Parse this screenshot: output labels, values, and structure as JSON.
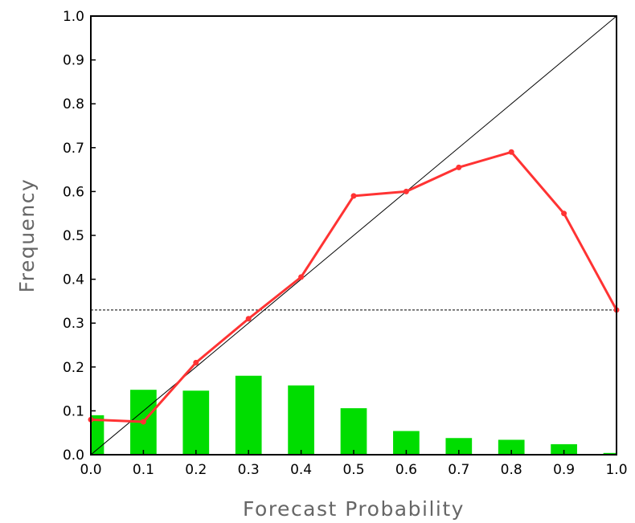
{
  "chart_data": {
    "type": "line",
    "title": "",
    "xlabel": "Forecast Probability",
    "ylabel": "Frequency",
    "xlim": [
      0,
      1
    ],
    "ylim": [
      0,
      1
    ],
    "x_ticks": [
      "0.0",
      "0.1",
      "0.2",
      "0.3",
      "0.4",
      "0.5",
      "0.6",
      "0.7",
      "0.8",
      "0.9",
      "1.0"
    ],
    "y_ticks": [
      "0.0",
      "0.1",
      "0.2",
      "0.3",
      "0.4",
      "0.5",
      "0.6",
      "0.7",
      "0.8",
      "0.9",
      "1.0"
    ],
    "grid": false,
    "legend": "none",
    "diagonal_reference": {
      "x": [
        0,
        1
      ],
      "y": [
        0,
        1
      ],
      "color": "#000000"
    },
    "climatology_line": {
      "y": 0.33,
      "style": "dashed",
      "color": "#000000"
    },
    "series": [
      {
        "type": "line",
        "color": "#ff3333",
        "x": [
          0.0,
          0.1,
          0.2,
          0.3,
          0.4,
          0.5,
          0.6,
          0.7,
          0.8,
          0.9,
          1.0
        ],
        "y": [
          0.08,
          0.075,
          0.21,
          0.31,
          0.405,
          0.59,
          0.6,
          0.655,
          0.69,
          0.55,
          0.33
        ]
      },
      {
        "type": "bar",
        "color": "#00dd00",
        "x": [
          0.0,
          0.1,
          0.2,
          0.3,
          0.4,
          0.5,
          0.6,
          0.7,
          0.8,
          0.9,
          1.0
        ],
        "y": [
          0.09,
          0.148,
          0.146,
          0.18,
          0.158,
          0.106,
          0.054,
          0.038,
          0.034,
          0.024,
          0.004
        ]
      }
    ]
  }
}
